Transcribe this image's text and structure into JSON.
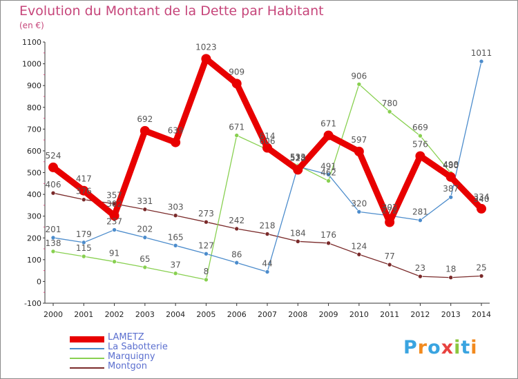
{
  "title": "Evolution du Montant de la Dette par Habitant",
  "subtitle": "(en €)",
  "logo": {
    "letters": [
      "P",
      "r",
      "o",
      "x",
      "i",
      "t",
      "i"
    ],
    "colors": [
      "#3aa4e0",
      "#f28a1e",
      "#3aa4e0",
      "#e8423f",
      "#8cc63f",
      "#3aa4e0",
      "#f28a1e"
    ]
  },
  "chart_data": {
    "type": "line",
    "x": [
      2000,
      2001,
      2002,
      2003,
      2004,
      2005,
      2006,
      2007,
      2008,
      2009,
      2010,
      2011,
      2012,
      2013,
      2014
    ],
    "ylim": [
      -100,
      1100
    ],
    "yticks": [
      -100,
      0,
      100,
      200,
      300,
      400,
      500,
      600,
      700,
      800,
      900,
      1000,
      1100
    ],
    "grid": false,
    "legend_position": "bottom-left",
    "series": [
      {
        "name": "LAMETZ",
        "color": "#e80000",
        "values": [
          524,
          417,
          302,
          692,
          639,
          1023,
          909,
          614,
          513,
          671,
          597,
          272,
          576,
          480,
          334
        ]
      },
      {
        "name": "La Sabotterie",
        "color": "#4c8ccc",
        "values": [
          201,
          179,
          237,
          202,
          165,
          127,
          86,
          44,
          528,
          491,
          320,
          302,
          281,
          387,
          1011
        ]
      },
      {
        "name": "Marquigny",
        "color": "#88d050",
        "values": [
          138,
          115,
          91,
          65,
          37,
          8,
          671,
          606,
          533,
          462,
          906,
          780,
          669,
          498,
          340
        ]
      },
      {
        "name": "Montgon",
        "color": "#7a2a2a",
        "values": [
          406,
          376,
          357,
          331,
          303,
          273,
          242,
          218,
          184,
          176,
          124,
          77,
          23,
          18,
          25
        ]
      }
    ]
  }
}
